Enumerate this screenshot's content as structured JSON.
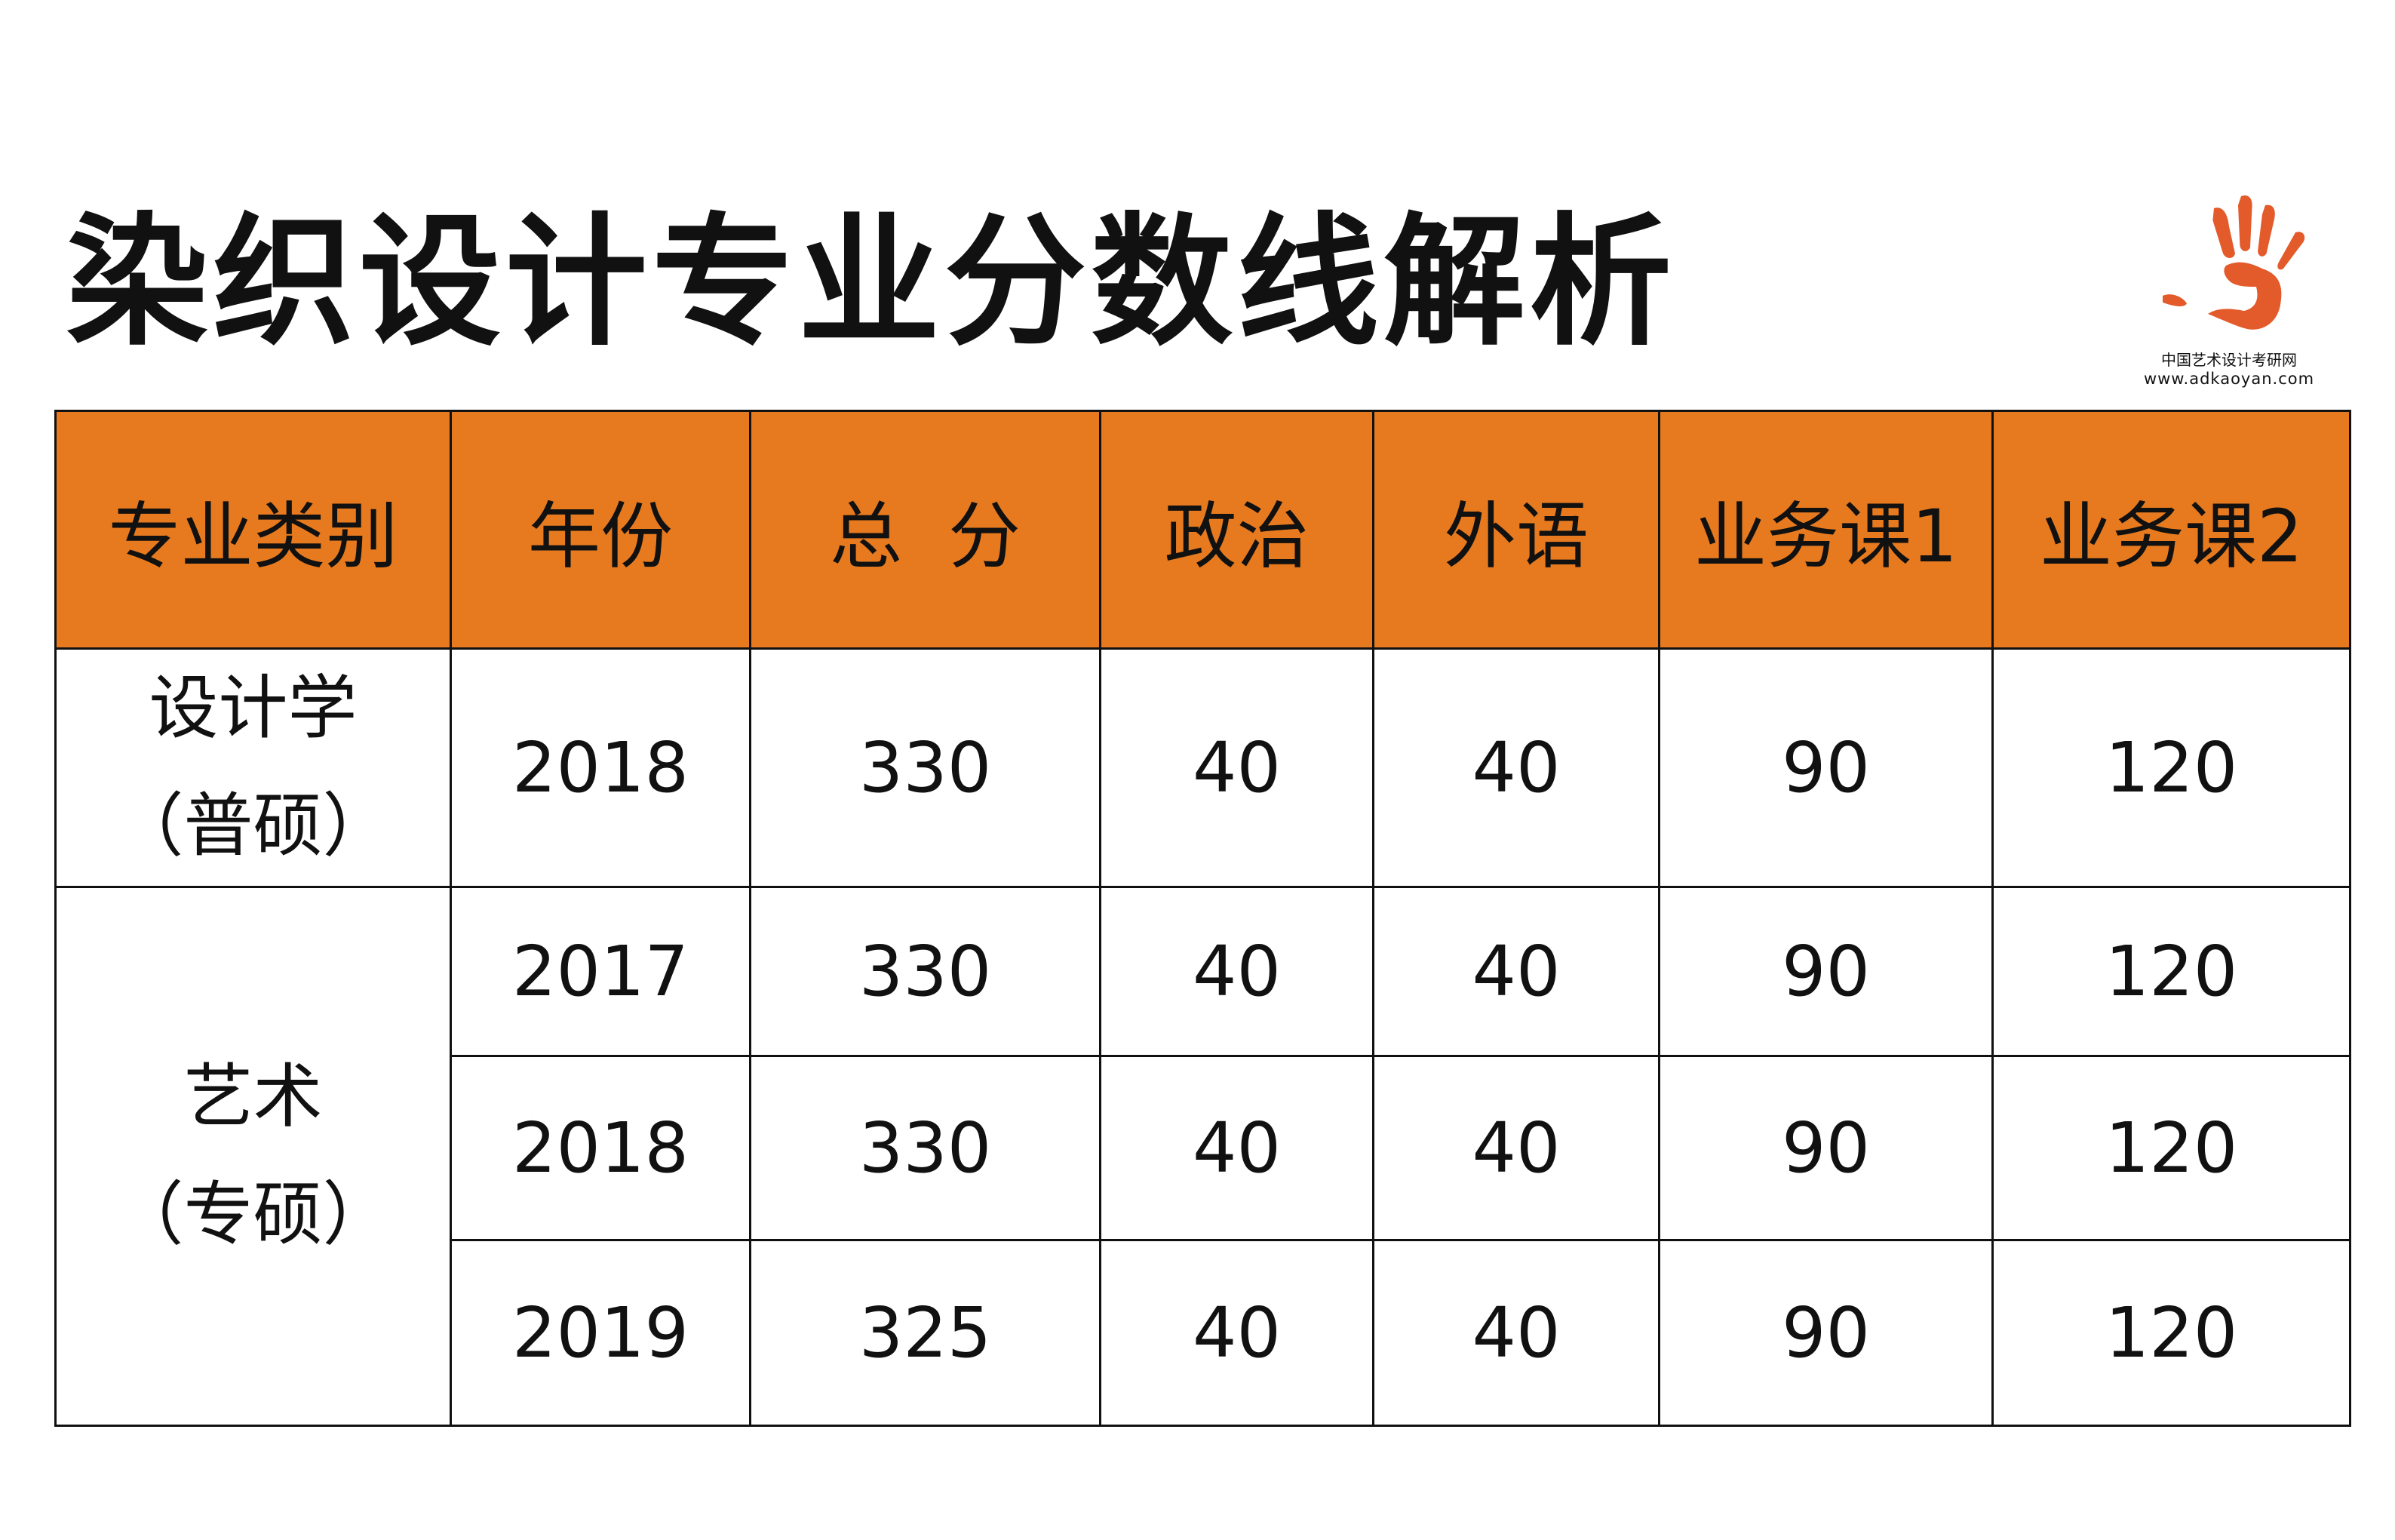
{
  "title": "染织设计专业分数线解析",
  "logo": {
    "name_cn": "中国艺术设计考研网",
    "url": "www.adkaoyan.com",
    "color": "#e35a2b"
  },
  "header_color": "#e77a1e",
  "table": {
    "headers": [
      "专业类别",
      "年份",
      "总  分",
      "政治",
      "外语",
      "业务课1",
      "业务课2"
    ],
    "groups": [
      {
        "category_line1": "设计学",
        "category_line2": "（普硕）",
        "rows": [
          [
            "2018",
            "330",
            "40",
            "40",
            "90",
            "120"
          ]
        ]
      },
      {
        "category_line1": "艺术",
        "category_line2": "（专硕）",
        "rows": [
          [
            "2017",
            "330",
            "40",
            "40",
            "90",
            "120"
          ],
          [
            "2018",
            "330",
            "40",
            "40",
            "90",
            "120"
          ],
          [
            "2019",
            "325",
            "40",
            "40",
            "90",
            "120"
          ]
        ]
      }
    ]
  }
}
